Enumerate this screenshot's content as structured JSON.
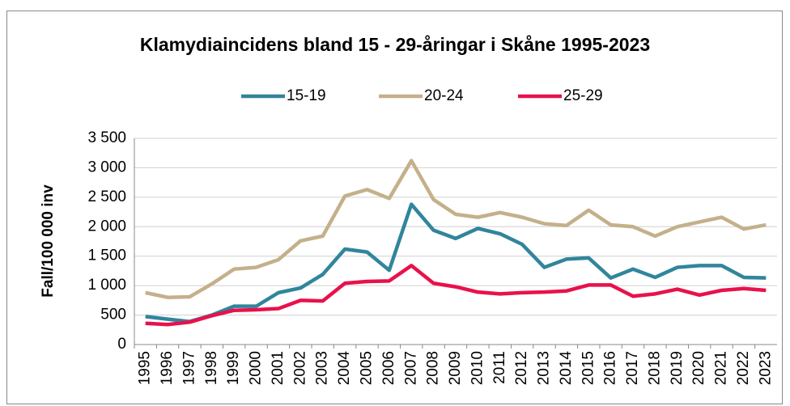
{
  "chart_data": {
    "type": "line",
    "title": "Klamydiaincidens bland 15 - 29-åringar i Skåne 1995-2023",
    "y_label": "Fall/100 000 inv",
    "categories": [
      "1995",
      "1996",
      "1997",
      "1998",
      "1999",
      "2000",
      "2001",
      "2002",
      "2003",
      "2004",
      "2005",
      "2006",
      "2007",
      "2008",
      "2009",
      "2010",
      "2011",
      "2012",
      "2013",
      "2014",
      "2015",
      "2016",
      "2017",
      "2018",
      "2019",
      "2020",
      "2021",
      "2022",
      "2023"
    ],
    "series": [
      {
        "name": "15-19",
        "color": "#31859c",
        "values": [
          475,
          430,
          390,
          500,
          650,
          650,
          880,
          960,
          1190,
          1620,
          1570,
          1260,
          2380,
          1940,
          1800,
          1970,
          1880,
          1700,
          1310,
          1450,
          1470,
          1130,
          1280,
          1140,
          1310,
          1340,
          1340,
          1140,
          1130
        ]
      },
      {
        "name": "20-24",
        "color": "#c4b08a",
        "values": [
          880,
          800,
          810,
          1030,
          1280,
          1310,
          1440,
          1760,
          1840,
          2520,
          2630,
          2480,
          3120,
          2460,
          2210,
          2160,
          2240,
          2160,
          2050,
          2020,
          2280,
          2030,
          2000,
          1840,
          2000,
          2080,
          2160,
          1960,
          2030
        ]
      },
      {
        "name": "25-29",
        "color": "#e8114b",
        "values": [
          360,
          340,
          380,
          490,
          580,
          590,
          610,
          750,
          740,
          1040,
          1070,
          1080,
          1340,
          1040,
          980,
          890,
          860,
          880,
          890,
          910,
          1010,
          1010,
          820,
          860,
          940,
          840,
          920,
          950,
          920
        ]
      }
    ],
    "ylim": [
      0,
      3500
    ],
    "yticks": [
      0,
      500,
      {
        "value": 1000,
        "label": "1 000"
      },
      {
        "value": 1500,
        "label": "1 500"
      },
      {
        "value": 2000,
        "label": "2 000"
      },
      {
        "value": 2500,
        "label": "2 500"
      },
      {
        "value": 3000,
        "label": "3 000"
      },
      {
        "value": 3500,
        "label": "3 500"
      }
    ],
    "grid": true,
    "legend": "top"
  }
}
